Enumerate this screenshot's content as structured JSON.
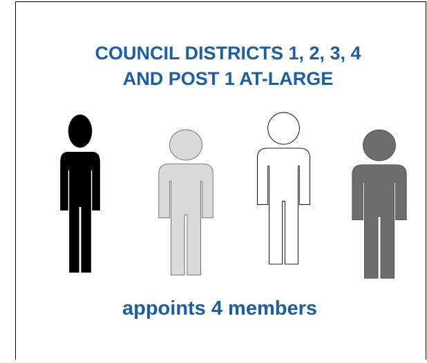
{
  "title": {
    "lines": [
      "COUNCIL DISTRICTS 1, 2, 3, 4",
      "AND POST 1 AT-LARGE"
    ]
  },
  "caption": "appoints 4 members"
}
